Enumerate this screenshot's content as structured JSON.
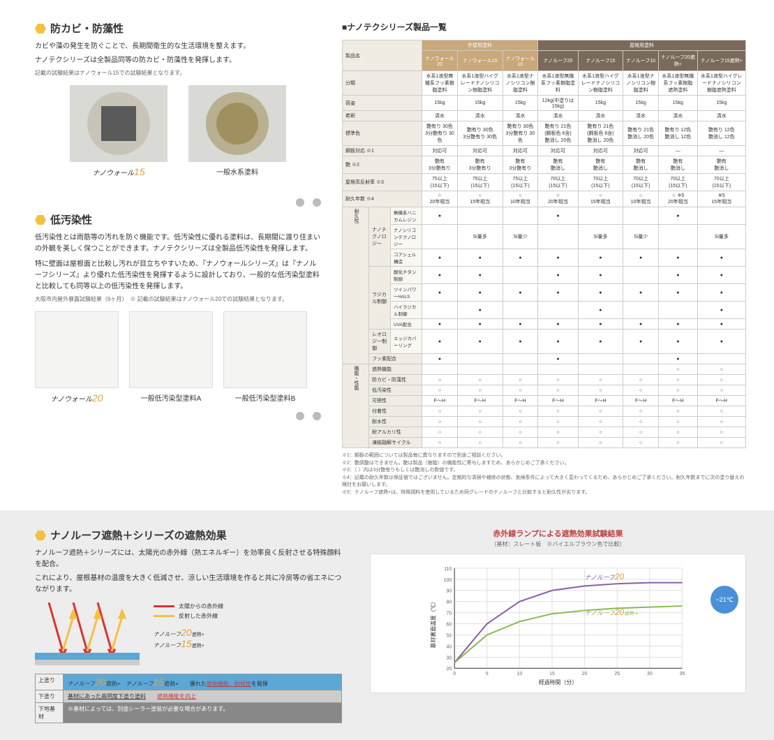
{
  "sections": {
    "antimold": {
      "title": "防カビ・防藻性",
      "desc1": "カビや藻の発生を防ぐことで、長期間衛生的な生活環境を整えます。",
      "desc2": "ナノテクシリーズは全製品同等の防カビ・防藻性を発揮します。",
      "note": "記載の試験結果はナノウォール15での試験結果となります。",
      "items": [
        {
          "name": "ナノウォール",
          "num": "15"
        },
        {
          "name": "一般水系塗料",
          "num": ""
        }
      ]
    },
    "lowstain": {
      "title": "低汚染性",
      "desc1": "低汚染性とは雨筋等の汚れを防ぐ機能です。低汚染性に優れる塗料は、長期間に渡り住まいの外観を美しく保つことができます。ナノテクシリーズは全製品低汚染性を発揮します。",
      "desc2": "特に壁面は屋根面と比較し汚れが目立ちやすいため、『ナノウォールシリーズ』は『ナノルーフシリーズ』より優れた低汚染性を発揮するように設計しており、一般的な低汚染型塗料と比較しても同等以上の低汚染性を発揮します。",
      "note": "大阪市内屋外暴露試験結果（6ヶ月）　※ 記載の試験結果はナノウォール20での試験結果となります。",
      "items": [
        {
          "name": "ナノウォール",
          "num": "20"
        },
        {
          "name": "一般低汚染型塗料A",
          "num": ""
        },
        {
          "name": "一般低汚染型塗料B",
          "num": ""
        }
      ]
    },
    "heat": {
      "title": "ナノルーフ遮熱＋シリーズの遮熱効果",
      "desc1": "ナノルーフ遮熱＋シリーズには、太陽光の赤外線（熱エネルギー）を効率良く反射させる特殊顔料を配合。",
      "desc2": "これにより、屋根基材の温度を大きく低減させ、涼しい生活環境を作ると共に冷房等の省エネにつながります。",
      "legend": [
        {
          "label": "太陽からの赤外線",
          "color": "#e03030"
        },
        {
          "label": "反射した赤外線",
          "color": "#f5c040"
        }
      ],
      "layers": [
        {
          "label": "上塗り",
          "val_a": "ナノルーフ20遮熱+",
          "val_b": "ナノルーフ15遮熱+",
          "note": "優れた遮熱機能、耐候性を発揮"
        },
        {
          "label": "下塗り",
          "val": "基材にあった高明度下塗り塗料",
          "note": "遮熱機能を向上"
        },
        {
          "label": "下地基材",
          "val": "※基材によっては、別途シーラー塗装が必要な場合があります。",
          "note": ""
        }
      ]
    }
  },
  "table": {
    "title": "■ナノテクシリーズ製品一覧",
    "cat_wall": "外壁用塗料",
    "cat_roof": "屋根用塗料",
    "products": [
      "ナノウォール20",
      "ナノウォール15",
      "ナノウォール10",
      "ナノルーフ20",
      "ナノルーフ15",
      "ナノルーフ10",
      "ナノルーフ20遮熱+",
      "ナノルーフ15遮熱+"
    ],
    "row_labels": {
      "name": "製品名",
      "class": "分類",
      "capacity": "荷姿",
      "dilute": "希釈",
      "color": "標準色",
      "ironsuit": "鋼板対応 ※1",
      "gloss": "艶 ※2",
      "reflect": "屋根高反射率 ※3",
      "life": "耐久年数 ※4",
      "nanotech": "ナノテクノロジー",
      "nanotech_sub": [
        "無機系ハニカムレジン",
        "ナノシリコンテクノロジー",
        "コアシェル構造"
      ],
      "radical": "ラジカル制御",
      "radical_sub": [
        "酸化チタン制御",
        "ツインパワーHALS",
        "ハイラジカル制御",
        "UVA配合"
      ],
      "rheology": "レオロジー制御",
      "rheology_sub": [
        "エッジカバーリング"
      ],
      "fluorine": "フッ素配合",
      "heatfn": "遮熱機能",
      "antimold": "防カビ・防藻性",
      "lowstain": "低汚染性",
      "flex": "可撓性",
      "adhesion": "付着性",
      "water": "耐水性",
      "alkali": "耐アルカリ性",
      "cycle": "凍結融解サイクル",
      "durability_cat": "耐久性",
      "function_cat": "機能・性能"
    },
    "rows": {
      "class": [
        "水系1液型無機系フッ素樹脂塗料",
        "水系1液型ハイグレードナノシリコン樹脂塗料",
        "水系1液型ナノシリコン樹脂塗料",
        "水系1液型無機系フッ素樹脂塗料",
        "水系1液型ハイグレードナノシリコン樹脂塗料",
        "水系1液型ナノシリコン樹脂塗料",
        "水系1液型無機系フッ素樹脂遮熱塗料",
        "水系1液型ハイグレードナノシリコン樹脂遮熱塗料"
      ],
      "capacity": [
        "15kg",
        "15kg",
        "15kg",
        "12kg(中塗りは15kg)",
        "15kg",
        "15kg",
        "15kg",
        "15kg"
      ],
      "dilute": [
        "清水",
        "清水",
        "清水",
        "清水",
        "清水",
        "清水",
        "清水",
        "清水"
      ],
      "color": [
        "艶有り 30色\n3分艶有り 30色",
        "艶有り 30色\n3分艶有り 30色",
        "艶有り 30色\n3分艶有り 30色",
        "艶有り 21色\n(鋼板色 6含)\n艶消し 20色",
        "艶有り 21色\n(鋼板色 6含)\n艶消し 20色",
        "艶有り 21色\n艶消し 20色",
        "艶有り 12色\n艶消し 12色",
        "艶有り 12色\n艶消し 12色"
      ],
      "ironsuit": [
        "対応可",
        "対応可",
        "対応可",
        "対応可",
        "対応可",
        "対応可",
        "—",
        "—"
      ],
      "gloss": [
        "艶有\n3分艶有り",
        "艶有\n3分艶有り",
        "艶有\n3分艶有り",
        "艶有\n艶消し",
        "艶有\n艶消し",
        "艶有\n艶消し",
        "艶有\n艶消し",
        "艶有\n艶消し"
      ],
      "reflect": [
        "75以上\n(15以下)",
        "75以上\n(15以下)",
        "75以上\n(15以下)",
        "70以上\n(15以下)",
        "70以上\n(15以下)",
        "70以上\n(15以下)",
        "70以上\n(15以下)",
        "70以上\n(15以下)"
      ],
      "life": [
        "☆\n20年相当",
        "○\n15年相当",
        "○\n10年相当",
        "☆\n20年相当",
        "○\n15年相当",
        "○\n10年相当",
        "☆ ※5\n20年相当",
        "※5\n15年相当"
      ]
    },
    "matrix": {
      "nanotech_sub": [
        [
          "●",
          "",
          "",
          "●",
          "",
          "",
          "●",
          ""
        ],
        [
          "",
          "Si量多",
          "Si量少",
          "",
          "Si量多",
          "Si量少",
          "",
          "Si量多"
        ],
        [
          "●",
          "●",
          "●",
          "●",
          "●",
          "●",
          "●",
          "●"
        ]
      ],
      "radical_sub": [
        [
          "●",
          "●",
          "",
          "●",
          "●",
          "",
          "●",
          "●"
        ],
        [
          "●",
          "●",
          "●",
          "●",
          "●",
          "●",
          "●",
          "●"
        ],
        [
          "",
          "●",
          "",
          "",
          "●",
          "",
          "",
          "●"
        ],
        [
          "●",
          "●",
          "●",
          "●",
          "●",
          "●",
          "●",
          "●"
        ]
      ],
      "rheology_sub": [
        [
          "●",
          "●",
          "●",
          "●",
          "●",
          "●",
          "●",
          "●"
        ]
      ],
      "fluorine": [
        "●",
        "",
        "",
        "●",
        "",
        "",
        "●",
        ""
      ],
      "heatfn": [
        "",
        "",
        "",
        "",
        "",
        "",
        "○",
        "○"
      ],
      "antimold": [
        "○",
        "○",
        "○",
        "○",
        "○",
        "○",
        "○",
        "○"
      ],
      "lowstain": [
        "○",
        "○",
        "○",
        "○",
        "○",
        "○",
        "○",
        "○"
      ],
      "flex": [
        "F～H",
        "F～H",
        "F～H",
        "F～H",
        "F～H",
        "F～H",
        "F～H",
        "F～H"
      ],
      "adhesion": [
        "○",
        "○",
        "○",
        "○",
        "○",
        "○",
        "○",
        "○"
      ],
      "water": [
        "○",
        "○",
        "○",
        "○",
        "○",
        "○",
        "○",
        "○"
      ],
      "alkali": [
        "○",
        "○",
        "○",
        "○",
        "○",
        "○",
        "○",
        "○"
      ],
      "cycle": [
        "○",
        "○",
        "○",
        "○",
        "○",
        "○",
        "○",
        "○"
      ]
    },
    "footnotes": [
      "※1：鋼板の範囲については製品毎に異なりますので別途ご相談ください。",
      "※2：艶調整はできません。艶は製品（樹脂）の機能性に寄与しますため、あらかじめご了承ください。",
      "※3：（ ）内は3分艶有りもしくは艶消しの数値です。",
      "※4：記載の耐久年数は保証値ではございません。定期的な清掃や補修の状態、気候条件によって大きく変わってくるため、あらかじめご了承ください。耐久年数までに次の塗り替えの検討をお願いします。",
      "※5：ナノルーフ遮熱+は、特殊顔料を使用しているため同グレードのナノルーフと比較すると耐久性が劣ります。"
    ]
  },
  "chart": {
    "title": "赤外線ランプによる遮熱効果試験結果",
    "subtitle": "（基材：スレート板　※バイエルブラウン色で比較）",
    "ylabel": "基材裏面温度（℃）",
    "xlabel": "経過時間（分）",
    "xlim": [
      0,
      35
    ],
    "ylim": [
      20,
      110
    ],
    "xticks": [
      0,
      5,
      10,
      15,
      20,
      25,
      30,
      35
    ],
    "yticks": [
      20,
      30,
      40,
      50,
      60,
      70,
      80,
      90,
      100,
      110
    ],
    "series": [
      {
        "name": "ナノルーフ20",
        "color": "#8a5ca8",
        "data": [
          [
            0,
            25
          ],
          [
            5,
            60
          ],
          [
            10,
            80
          ],
          [
            15,
            90
          ],
          [
            20,
            94
          ],
          [
            25,
            96
          ],
          [
            30,
            97
          ],
          [
            35,
            97
          ]
        ]
      },
      {
        "name": "ナノルーフ20遮熱＋",
        "color": "#8ab850",
        "data": [
          [
            0,
            25
          ],
          [
            5,
            50
          ],
          [
            10,
            62
          ],
          [
            15,
            69
          ],
          [
            20,
            72
          ],
          [
            25,
            74
          ],
          [
            30,
            75
          ],
          [
            35,
            76
          ]
        ]
      }
    ],
    "badge": "−21℃",
    "grid_color": "#e0e0e0",
    "bg": "#ffffff"
  }
}
